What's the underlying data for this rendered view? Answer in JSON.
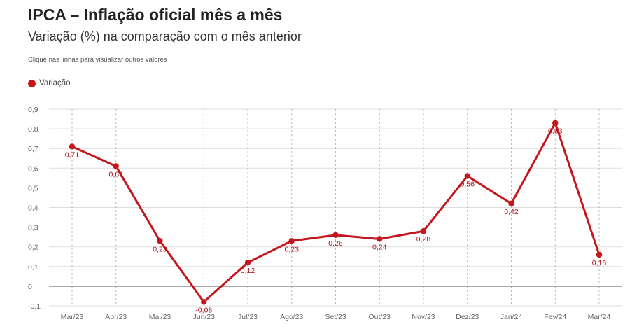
{
  "header": {
    "title": "IPCA – Inflação oficial mês a mês",
    "subtitle": "Variação (%) na comparação com o mês anterior",
    "hint": "Clique nas linhas para visualizar outros valores"
  },
  "colors": {
    "series": "#c4161c",
    "label": "#b01217",
    "grid": "#dddddd",
    "zero_line": "#777777"
  },
  "chart_data": {
    "type": "line",
    "x": [
      "Mar/23",
      "Abr/23",
      "Mai/23",
      "Jun/23",
      "Jul/23",
      "Ago/23",
      "Set/23",
      "Out/23",
      "Nov/23",
      "Dez/23",
      "Jan/24",
      "Fev/24",
      "Mar/24"
    ],
    "series": [
      {
        "name": "Variação",
        "values": [
          0.71,
          0.61,
          0.23,
          -0.08,
          0.12,
          0.23,
          0.26,
          0.24,
          0.28,
          0.56,
          0.42,
          0.83,
          0.16
        ],
        "labels": [
          "0,71",
          "0,61",
          "0,23",
          "-0,08",
          "0,12",
          "0,23",
          "0,26",
          "0,24",
          "0,28",
          "0,56",
          "0,42",
          "0,83",
          "0,16"
        ]
      }
    ],
    "yticks": [
      -0.1,
      0,
      0.1,
      0.2,
      0.3,
      0.4,
      0.5,
      0.6,
      0.7,
      0.8,
      0.9
    ],
    "ytick_labels": [
      "-0,1",
      "0",
      "0,1",
      "0,2",
      "0,3",
      "0,4",
      "0,5",
      "0,6",
      "0,7",
      "0,8",
      "0,9"
    ],
    "ylim": [
      -0.1,
      0.9
    ],
    "xlabel": "",
    "ylabel": "",
    "grid": true,
    "legend": "top-left"
  }
}
